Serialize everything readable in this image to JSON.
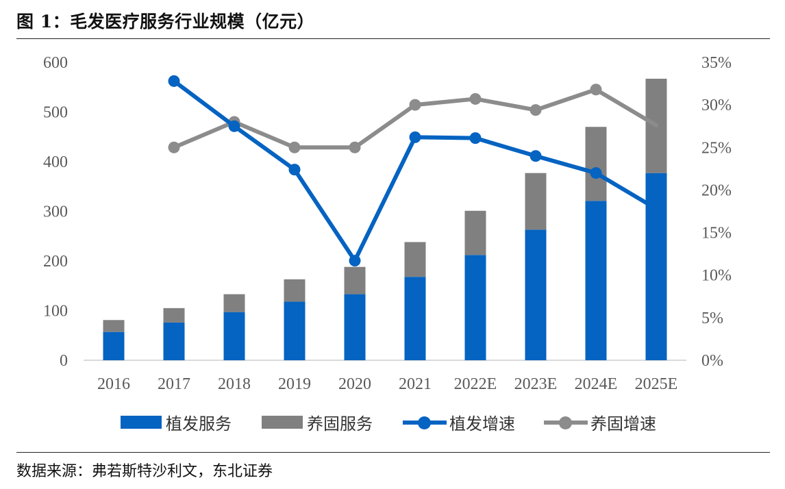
{
  "title": "图 1：毛发医疗服务行业规模（亿元）",
  "source": "数据来源：弗若斯特沙利文，东北证券",
  "colors": {
    "implant": "#0563C1",
    "care": "#808080",
    "implant_line": "#0563C1",
    "care_line": "#8C8C8C",
    "axis_text": "#595959",
    "axis_line": "#D9D9D9"
  },
  "chart_data": {
    "type": "bar",
    "categories": [
      "2016",
      "2017",
      "2018",
      "2019",
      "2020",
      "2021",
      "2022E",
      "2023E",
      "2024E",
      "2025E"
    ],
    "series": [
      {
        "name": "植发服务",
        "type": "bar",
        "stack": "total",
        "axis": "left",
        "values": [
          57,
          76,
          97,
          118,
          133,
          168,
          212,
          263,
          321,
          377
        ]
      },
      {
        "name": "养固服务",
        "type": "bar",
        "stack": "total",
        "axis": "left",
        "values": [
          24,
          29,
          36,
          45,
          55,
          70,
          89,
          114,
          149,
          190
        ]
      },
      {
        "name": "植发增速",
        "type": "line",
        "axis": "right",
        "values": [
          null,
          32.8,
          27.5,
          22.4,
          11.7,
          26.2,
          26.1,
          24.0,
          22.0,
          17.8
        ]
      },
      {
        "name": "养固增速",
        "type": "line",
        "axis": "right",
        "values": [
          null,
          25.0,
          28.0,
          25.0,
          25.0,
          30.0,
          30.7,
          29.4,
          31.8,
          27.6
        ]
      }
    ],
    "y_left": {
      "min": 0,
      "max": 600,
      "ticks": [
        "0",
        "100",
        "200",
        "300",
        "400",
        "500",
        "600"
      ]
    },
    "y_right": {
      "min": 0,
      "max": 35,
      "ticks": [
        "0%",
        "5%",
        "10%",
        "15%",
        "20%",
        "25%",
        "30%",
        "35%"
      ]
    },
    "legend": [
      "植发服务",
      "养固服务",
      "植发增速",
      "养固增速"
    ],
    "legend_position": "bottom"
  }
}
